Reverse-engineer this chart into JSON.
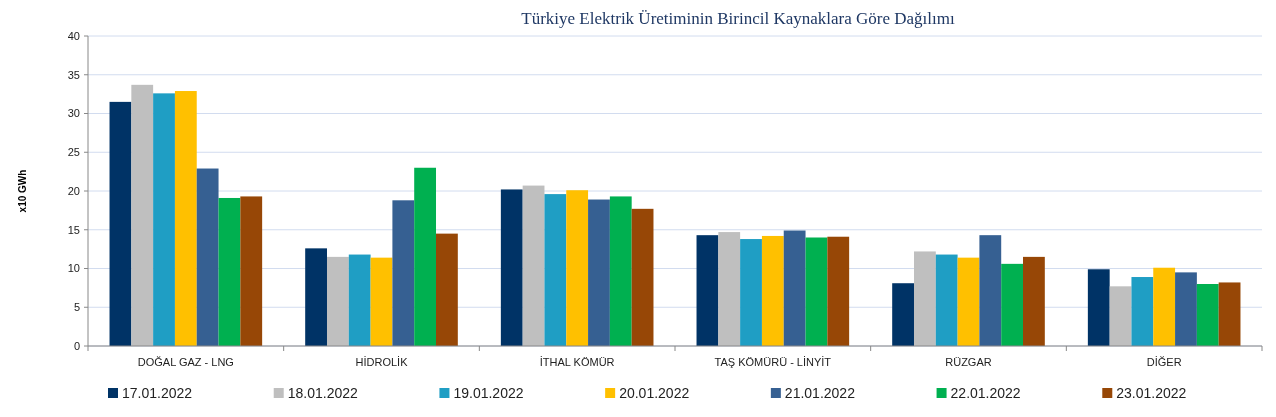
{
  "chart_data": {
    "type": "bar",
    "title": "Türkiye Elektrik Üretiminin Birincil Kaynaklara Göre Dağılımı",
    "ylabel": "x10 GWh",
    "categories": [
      "DOĞAL GAZ - LNG",
      "HİDROLİK",
      "İTHAL KÖMÜR",
      "TAŞ KÖMÜRÜ - LİNYİT",
      "RÜZGAR",
      "DİĞER"
    ],
    "series": [
      {
        "name": "17.01.2022",
        "color": "#003366",
        "values": [
          31.5,
          12.6,
          20.2,
          14.3,
          8.1,
          9.9
        ]
      },
      {
        "name": "18.01.2022",
        "color": "#bfbfbf",
        "values": [
          33.7,
          11.5,
          20.7,
          14.7,
          12.2,
          7.7
        ]
      },
      {
        "name": "19.01.2022",
        "color": "#1f9ec4",
        "values": [
          32.6,
          11.8,
          19.6,
          13.8,
          11.8,
          8.9
        ]
      },
      {
        "name": "20.01.2022",
        "color": "#ffc000",
        "values": [
          32.9,
          11.4,
          20.1,
          14.2,
          11.4,
          10.1
        ]
      },
      {
        "name": "21.01.2022",
        "color": "#366092",
        "values": [
          22.9,
          18.8,
          18.9,
          14.9,
          14.3,
          9.5
        ]
      },
      {
        "name": "22.01.2022",
        "color": "#00b050",
        "values": [
          19.1,
          23.0,
          19.3,
          14.0,
          10.6,
          8.0
        ]
      },
      {
        "name": "23.01.2022",
        "color": "#974706",
        "values": [
          19.3,
          14.5,
          17.7,
          14.1,
          11.5,
          8.2
        ]
      }
    ],
    "ylim": [
      0,
      40
    ],
    "yticks": [
      0,
      5,
      10,
      15,
      20,
      25,
      30,
      35,
      40
    ],
    "grid": "y",
    "legend": "bottom"
  }
}
